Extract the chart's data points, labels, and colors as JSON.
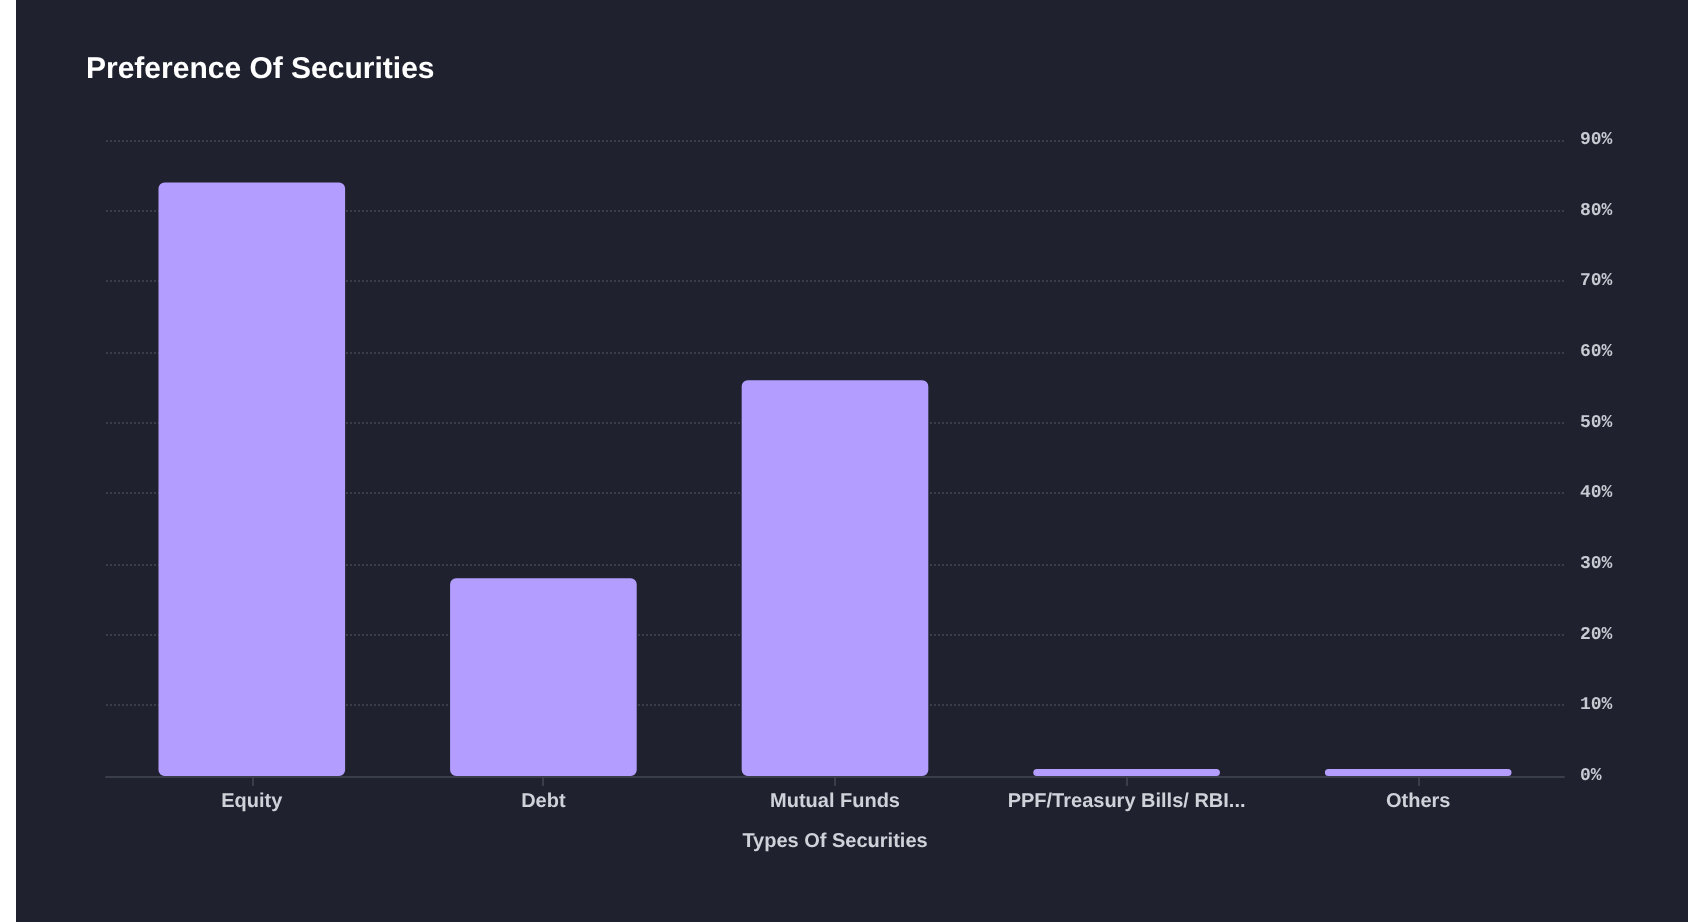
{
  "chart_data": {
    "type": "bar",
    "title": "Preference Of Securities",
    "xlabel": "Types Of Securities",
    "categories": [
      "Equity",
      "Debt",
      "Mutual Funds",
      "PPF/Treasury Bills/ RBI...",
      "Others"
    ],
    "values": [
      84,
      28,
      56,
      1,
      1
    ],
    "color": "#b39dff",
    "ylim": [
      0,
      90
    ],
    "yticks": [
      {
        "value": 0,
        "label": "0%"
      },
      {
        "value": 10,
        "label": "10%"
      },
      {
        "value": 20,
        "label": "20%"
      },
      {
        "value": 30,
        "label": "30%"
      },
      {
        "value": 40,
        "label": "40%"
      },
      {
        "value": 50,
        "label": "50%"
      },
      {
        "value": 60,
        "label": "60%"
      },
      {
        "value": 70,
        "label": "70%"
      },
      {
        "value": 80,
        "label": "80%"
      },
      {
        "value": 90,
        "label": "90%"
      }
    ],
    "grid": "y"
  }
}
